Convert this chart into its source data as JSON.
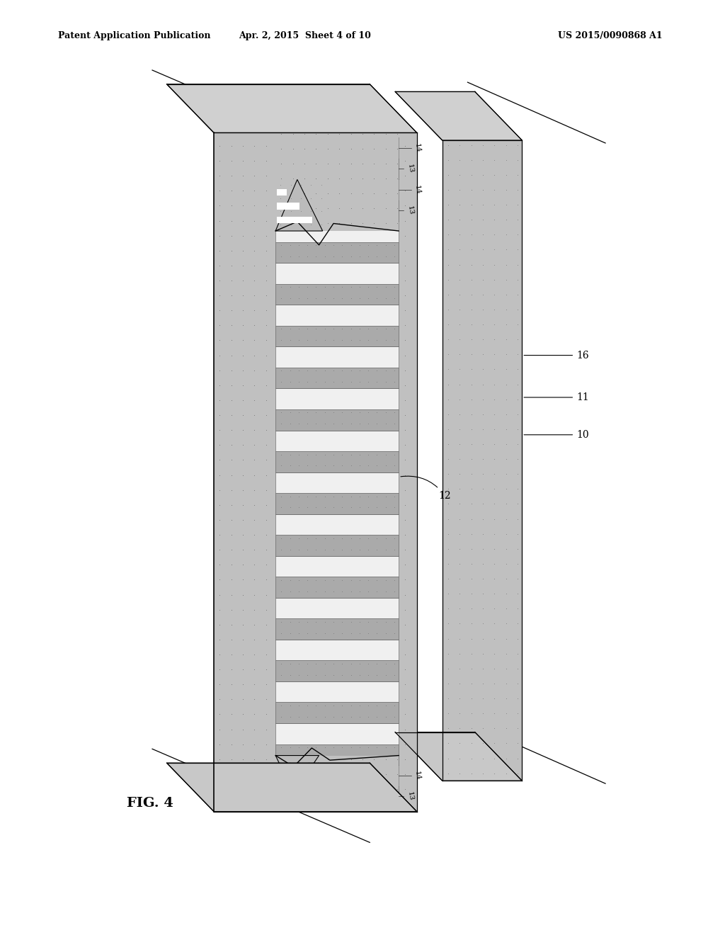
{
  "title_left": "Patent Application Publication",
  "title_mid": "Apr. 2, 2015  Sheet 4 of 10",
  "title_right": "US 2015/0090868 A1",
  "fig_label": "FIG. 4",
  "background_color": "#ffffff",
  "stipple_color": "#777777",
  "stripe_light": "#ffffff",
  "stripe_dark_face": "#bbbbbb",
  "main_gray": "#aaaaaa",
  "right_block_gray": "#bbbbbb",
  "n_stripe_pairs": 16,
  "label_fontsize": 10,
  "header_fontsize": 9
}
